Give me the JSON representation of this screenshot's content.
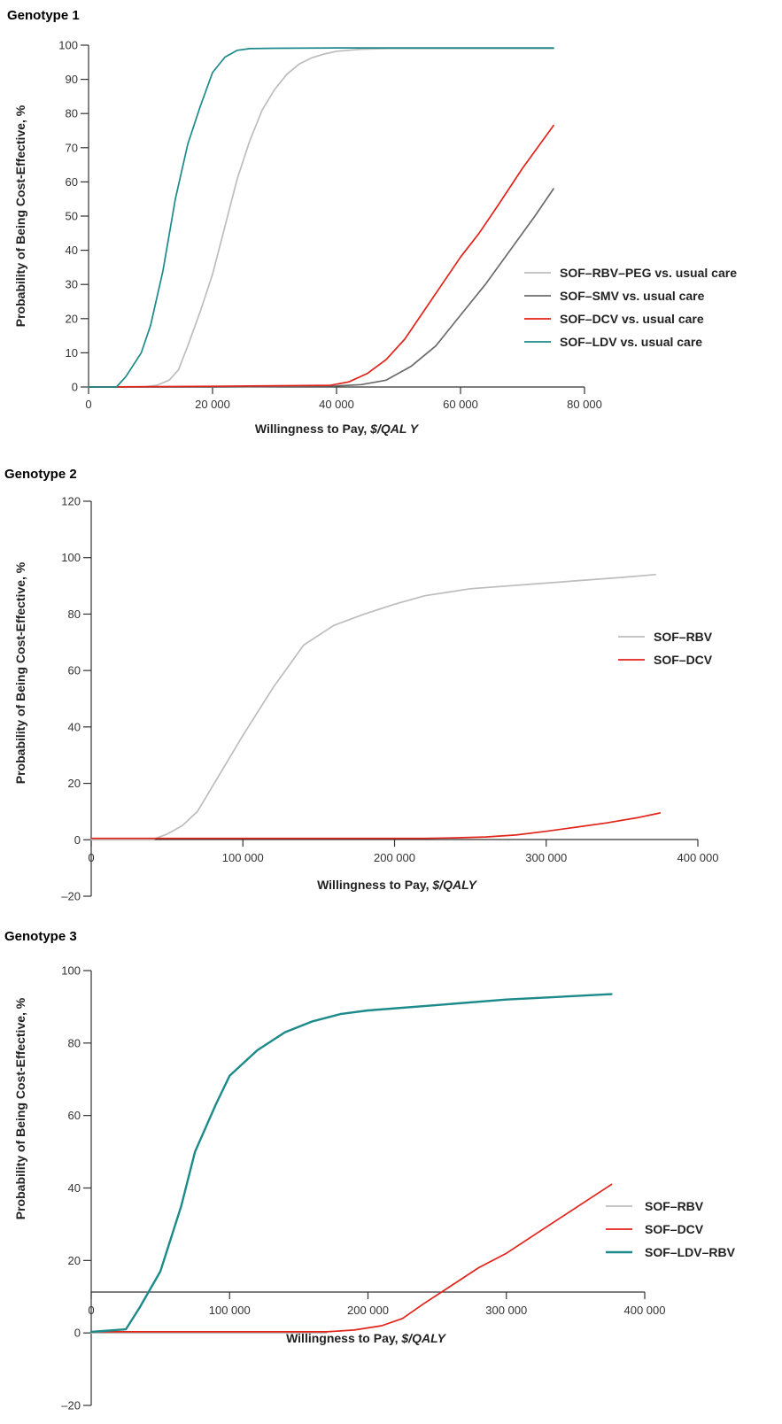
{
  "chart_data": [
    {
      "type": "line",
      "title": "Genotype 1",
      "ylabel": "Probability of Being Cost-Effective, %",
      "xlabel_main": "Willingness to Pay, ",
      "xlabel_unit": "$/QAL Y",
      "xlim": [
        0,
        80000
      ],
      "ylim": [
        0,
        100
      ],
      "xticks": [
        0,
        20000,
        40000,
        60000,
        80000
      ],
      "xtick_labels": [
        "0",
        "20 000",
        "40 000",
        "60 000",
        "80 000"
      ],
      "yticks": [
        0,
        10,
        20,
        30,
        40,
        50,
        60,
        70,
        80,
        90,
        100
      ],
      "ytick_labels": [
        "0",
        "10",
        "20",
        "30",
        "40",
        "50",
        "60",
        "70",
        "80",
        "90",
        "100"
      ],
      "grid": false,
      "legend_position": "right",
      "series": [
        {
          "name": "SOF–RBV–PEG vs. usual care",
          "color": "#bdbdbd",
          "x": [
            0,
            9000,
            11000,
            13000,
            14500,
            16000,
            18000,
            20000,
            22000,
            24000,
            26000,
            28000,
            30000,
            32000,
            34000,
            36000,
            38000,
            40000,
            44000,
            48000,
            52000,
            56000,
            60000,
            66000,
            75000
          ],
          "y": [
            0,
            0,
            0.5,
            2,
            5,
            12,
            22,
            33,
            47,
            61,
            72,
            81,
            87,
            91.5,
            94.5,
            96.3,
            97.4,
            98.2,
            98.8,
            99,
            99,
            99,
            99,
            99,
            99
          ]
        },
        {
          "name": "SOF–SMV vs. usual care",
          "color": "#6b6b6b",
          "x": [
            0,
            20000,
            40000,
            44000,
            48000,
            52000,
            56000,
            60000,
            64000,
            68000,
            72000,
            75000
          ],
          "y": [
            0,
            0,
            0.3,
            0.7,
            2,
            6,
            12,
            21,
            30,
            40,
            50,
            58
          ]
        },
        {
          "name": "SOF–DCV vs. usual care",
          "color": "#e2231a",
          "x": [
            0,
            20000,
            39000,
            42000,
            45000,
            48000,
            51000,
            54000,
            57000,
            60000,
            63000,
            66000,
            70000,
            75000
          ],
          "y": [
            0,
            0.2,
            0.5,
            1.5,
            4,
            8,
            14,
            22,
            30,
            38,
            45,
            53,
            64,
            76.5
          ]
        },
        {
          "name": "SOF–LDV vs. usual care",
          "color": "#1c8a8a",
          "x": [
            0,
            4500,
            6000,
            8500,
            10000,
            12000,
            14000,
            16000,
            18000,
            20000,
            22000,
            24000,
            26000,
            30000,
            40000,
            60000,
            75000
          ],
          "y": [
            0,
            0,
            3,
            10,
            18,
            34,
            55,
            71,
            82,
            92,
            96.5,
            98.5,
            99,
            99.1,
            99.2,
            99.2,
            99.2
          ]
        }
      ]
    },
    {
      "type": "line",
      "title": "Genotype 2",
      "ylabel": "Probability of Being Cost-Effective, %",
      "xlabel_main": "Willingness to Pay, ",
      "xlabel_unit": "$/QALY",
      "xlim": [
        0,
        400000
      ],
      "ylim": [
        -20,
        120
      ],
      "xticks": [
        0,
        100000,
        200000,
        300000,
        400000
      ],
      "xtick_labels": [
        "0",
        "100 000",
        "200 000",
        "300 000",
        "400 000"
      ],
      "yticks": [
        -20,
        0,
        20,
        40,
        60,
        80,
        100,
        120
      ],
      "ytick_labels": [
        "–20",
        "0",
        "20",
        "40",
        "60",
        "80",
        "100",
        "120"
      ],
      "grid": false,
      "legend_position": "right",
      "series": [
        {
          "name": "SOF–RBV",
          "color": "#bdbdbd",
          "x": [
            0,
            40000,
            50000,
            60000,
            70000,
            80000,
            100000,
            120000,
            140000,
            160000,
            180000,
            200000,
            220000,
            250000,
            300000,
            350000,
            372000
          ],
          "y": [
            0,
            0,
            2,
            5,
            10,
            19,
            37,
            54,
            69,
            76,
            80,
            83.5,
            86.5,
            89,
            91,
            93,
            94
          ]
        },
        {
          "name": "SOF–DCV",
          "color": "#e2231a",
          "x": [
            0,
            220000,
            240000,
            260000,
            280000,
            300000,
            320000,
            340000,
            360000,
            375000
          ],
          "y": [
            0.5,
            0.5,
            0.7,
            1,
            1.7,
            3,
            4.5,
            6,
            7.8,
            9.5
          ]
        }
      ]
    },
    {
      "type": "line",
      "title": "Genotype 3",
      "ylabel": "Probability of Being Cost-Effective, %",
      "xlabel_main": "Willingness to Pay, ",
      "xlabel_unit": "$/QALY",
      "xlim": [
        0,
        400000
      ],
      "ylim": [
        -20,
        100
      ],
      "xticks": [
        0,
        100000,
        200000,
        300000,
        400000
      ],
      "xtick_labels": [
        "0",
        "100 000",
        "200 000",
        "300 000",
        "400 000"
      ],
      "yticks": [
        -20,
        0,
        20,
        40,
        60,
        80,
        100
      ],
      "ytick_labels": [
        "–20",
        "0",
        "20",
        "40",
        "60",
        "80",
        "100"
      ],
      "grid": false,
      "legend_position": "right",
      "series": [
        {
          "name": "SOF–RBV",
          "color": "#bdbdbd",
          "x": [
            0,
            170000
          ],
          "y": [
            0,
            0
          ]
        },
        {
          "name": "SOF–DCV",
          "color": "#e2231a",
          "x": [
            0,
            170000,
            190000,
            210000,
            225000,
            240000,
            260000,
            280000,
            300000,
            320000,
            340000,
            360000,
            376000
          ],
          "y": [
            0.3,
            0.3,
            0.8,
            2,
            4,
            8,
            13,
            18,
            22,
            27,
            32,
            37,
            41
          ]
        },
        {
          "name": "SOF–LDV–RBV",
          "color": "#1c8a8a",
          "x": [
            0,
            25000,
            35000,
            50000,
            65000,
            75000,
            90000,
            100000,
            120000,
            140000,
            160000,
            180000,
            200000,
            250000,
            300000,
            376000
          ],
          "y": [
            0.3,
            1,
            7,
            17,
            35,
            50,
            63,
            71,
            78,
            83,
            86,
            88,
            89,
            90.5,
            92,
            93.5
          ]
        }
      ]
    }
  ]
}
